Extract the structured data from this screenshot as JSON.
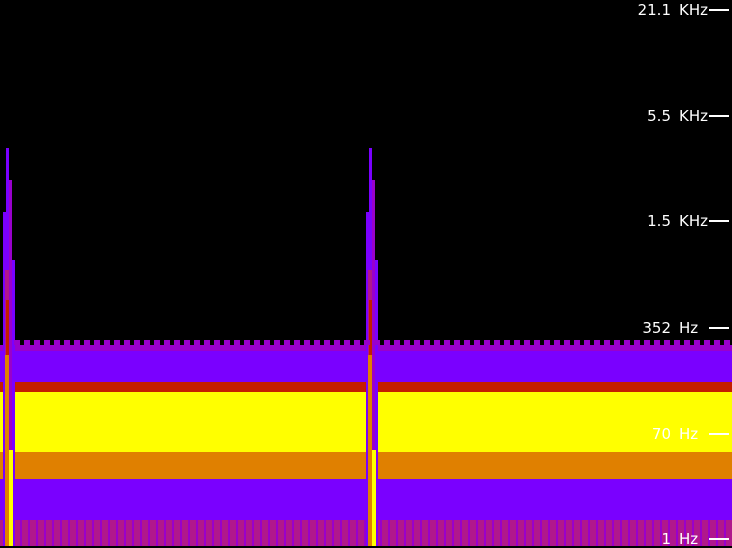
{
  "colors": {
    "background": "#000000",
    "violet": "#7a00ff",
    "purple": "#9900cc",
    "magenta": "#b0188c",
    "red": "#c41e00",
    "orange": "#e08000",
    "yellow": "#ffff00",
    "tick": "#ffffff"
  },
  "freq_axis": {
    "ticks": [
      {
        "value": "21.1",
        "unit": "KHz"
      },
      {
        "value": "5.5",
        "unit": "KHz"
      },
      {
        "value": "1.5",
        "unit": "KHz"
      },
      {
        "value": "352",
        "unit": "Hz"
      },
      {
        "value": "70",
        "unit": "Hz"
      },
      {
        "value": "1",
        "unit": "Hz"
      }
    ]
  }
}
